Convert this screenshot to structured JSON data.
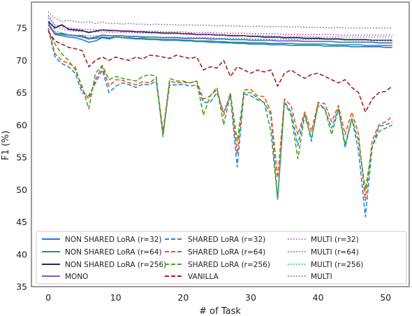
{
  "chart_data": {
    "type": "line",
    "xlabel": "# of Task",
    "ylabel": "F1 (%)",
    "xlim": [
      -2.5,
      53.5
    ],
    "ylim": [
      35,
      79
    ],
    "xticks": [
      0,
      10,
      20,
      30,
      40,
      50
    ],
    "yticks": [
      35,
      40,
      45,
      50,
      55,
      60,
      65,
      70,
      75
    ],
    "grid": false,
    "legend": {
      "placement": "bottom",
      "columns": 3
    },
    "x": [
      0,
      1,
      2,
      3,
      4,
      5,
      6,
      7,
      8,
      9,
      10,
      11,
      12,
      13,
      14,
      15,
      16,
      17,
      18,
      19,
      20,
      21,
      22,
      23,
      24,
      25,
      26,
      27,
      28,
      29,
      30,
      31,
      32,
      33,
      34,
      35,
      36,
      37,
      38,
      39,
      40,
      41,
      42,
      43,
      44,
      45,
      46,
      47,
      48,
      49,
      50,
      51
    ],
    "series": [
      {
        "name": "NON SHARED LoRA (r=32)",
        "color": "#1f77e6",
        "dash": "solid",
        "width": 1.6,
        "values": [
          75.8,
          74.0,
          73.8,
          73.6,
          73.5,
          73.2,
          72.8,
          73.0,
          73.5,
          73.3,
          73.6,
          73.5,
          73.4,
          73.3,
          73.3,
          73.2,
          73.2,
          73.1,
          73.1,
          73.1,
          73.0,
          73.0,
          72.9,
          72.9,
          72.8,
          72.8,
          72.7,
          72.7,
          72.6,
          72.6,
          72.5,
          72.5,
          72.5,
          72.4,
          72.4,
          72.4,
          72.3,
          72.3,
          72.3,
          72.3,
          72.3,
          72.2,
          72.2,
          72.2,
          72.2,
          72.1,
          72.1,
          72.1,
          72.1,
          72.1,
          72.0,
          72.0
        ]
      },
      {
        "name": "NON SHARED LoRA (r=64)",
        "color": "#159a7c",
        "dash": "solid",
        "width": 1.6,
        "values": [
          75.5,
          74.2,
          74.0,
          73.9,
          73.8,
          73.6,
          73.3,
          73.4,
          73.6,
          73.5,
          73.6,
          73.5,
          73.5,
          73.4,
          73.4,
          73.3,
          73.3,
          73.2,
          73.2,
          73.2,
          73.1,
          73.1,
          73.0,
          73.0,
          73.0,
          72.9,
          72.9,
          72.8,
          72.8,
          72.8,
          72.7,
          72.7,
          72.7,
          72.6,
          72.6,
          72.6,
          72.6,
          72.5,
          72.5,
          72.5,
          72.5,
          72.5,
          72.4,
          72.4,
          72.4,
          72.4,
          72.4,
          72.3,
          72.3,
          72.3,
          72.3,
          72.3
        ]
      },
      {
        "name": "NON SHARED LoRA (r=256)",
        "color": "#1b2a52",
        "dash": "solid",
        "width": 1.8,
        "values": [
          76.0,
          75.0,
          75.5,
          74.8,
          74.7,
          74.6,
          74.3,
          74.5,
          74.7,
          74.6,
          74.6,
          74.5,
          74.5,
          74.4,
          74.4,
          74.3,
          74.3,
          74.2,
          74.2,
          74.2,
          74.1,
          74.1,
          74.0,
          74.0,
          74.0,
          73.9,
          73.9,
          73.8,
          73.8,
          73.8,
          73.7,
          73.7,
          73.6,
          73.6,
          73.6,
          73.5,
          73.5,
          73.5,
          73.4,
          73.4,
          73.4,
          73.3,
          73.3,
          73.3,
          73.2,
          73.2,
          73.2,
          73.2,
          73.1,
          73.1,
          73.1,
          73.1
        ]
      },
      {
        "name": "MONO",
        "color": "#7b5cc8",
        "dash": "solid",
        "width": 1.8,
        "values": [
          75.5,
          74.0,
          74.2,
          73.9,
          73.8,
          73.8,
          73.4,
          73.6,
          73.9,
          73.8,
          73.8,
          73.8,
          73.7,
          73.7,
          73.6,
          73.6,
          73.6,
          73.5,
          73.5,
          73.5,
          73.4,
          73.4,
          73.4,
          73.4,
          73.3,
          73.3,
          73.3,
          73.2,
          73.2,
          73.2,
          73.1,
          73.1,
          73.1,
          73.1,
          73.0,
          73.0,
          73.0,
          73.0,
          72.9,
          72.9,
          72.9,
          72.9,
          72.9,
          72.8,
          72.8,
          72.8,
          72.8,
          72.8,
          72.8,
          72.7,
          72.7,
          72.7
        ]
      },
      {
        "name": "SHARED LoRA (r=32)",
        "color": "#1f86e6",
        "dash": "dashed",
        "width": 1.6,
        "values": [
          74.8,
          70.5,
          69.5,
          69.0,
          68.0,
          65.0,
          64.5,
          66.5,
          68.5,
          65.0,
          66.0,
          66.5,
          66.2,
          65.8,
          66.3,
          66.2,
          66.8,
          58.5,
          66.2,
          66.2,
          66.3,
          66.0,
          66.2,
          63.5,
          63.5,
          65.0,
          62.0,
          64.5,
          53.5,
          64.8,
          64.5,
          63.9,
          63.5,
          61.5,
          48.5,
          63.6,
          62.0,
          56.8,
          62.0,
          57.5,
          63.4,
          62.5,
          59.5,
          62.5,
          56.5,
          61.0,
          56.0,
          45.8,
          56.5,
          59.8,
          60.0,
          60.5
        ]
      },
      {
        "name": "SHARED LoRA (r=64)",
        "color": "#e8531e",
        "dash": "dashed",
        "width": 1.6,
        "values": [
          75.0,
          71.0,
          70.0,
          69.5,
          69.0,
          65.5,
          64.0,
          67.0,
          69.0,
          66.0,
          67.0,
          66.9,
          66.5,
          66.2,
          66.7,
          66.5,
          67.3,
          59.0,
          66.8,
          66.5,
          66.6,
          66.5,
          66.8,
          64.0,
          64.5,
          65.5,
          61.5,
          65.0,
          55.5,
          65.4,
          65.5,
          64.5,
          64.4,
          62.0,
          51.8,
          64.0,
          63.0,
          58.5,
          62.0,
          59.0,
          63.5,
          63.3,
          60.5,
          63.0,
          58.5,
          62.0,
          58.5,
          48.3,
          57.5,
          60.0,
          60.5,
          61.3
        ]
      },
      {
        "name": "SHARED LoRA (r=256)",
        "color": "#46a31c",
        "dash": "dashed",
        "width": 1.6,
        "values": [
          74.5,
          72.5,
          71.0,
          70.0,
          68.5,
          66.0,
          62.5,
          68.0,
          69.2,
          67.0,
          67.5,
          67.2,
          67.0,
          66.8,
          67.5,
          67.8,
          67.5,
          58.2,
          67.2,
          66.8,
          66.8,
          66.5,
          66.8,
          61.5,
          64.5,
          65.8,
          60.0,
          64.8,
          57.5,
          65.0,
          65.0,
          64.2,
          63.5,
          59.0,
          48.5,
          63.5,
          61.5,
          54.8,
          61.5,
          58.0,
          63.0,
          62.5,
          58.5,
          62.5,
          57.0,
          61.0,
          57.5,
          50.0,
          56.5,
          59.0,
          59.5,
          60.0
        ]
      },
      {
        "name": "VANILLA",
        "color": "#a51e1e",
        "dash": "dashed",
        "width": 1.6,
        "values": [
          74.5,
          73.0,
          72.5,
          72.0,
          71.8,
          71.5,
          69.0,
          70.0,
          70.5,
          70.0,
          70.5,
          70.2,
          70.0,
          70.5,
          70.2,
          70.8,
          70.7,
          70.5,
          70.3,
          70.8,
          70.5,
          70.3,
          70.5,
          68.5,
          69.0,
          68.8,
          70.0,
          67.5,
          69.0,
          68.5,
          68.0,
          68.5,
          68.2,
          68.5,
          66.0,
          68.0,
          68.5,
          67.8,
          67.2,
          67.8,
          68.0,
          67.5,
          67.0,
          66.5,
          67.0,
          65.8,
          65.0,
          62.0,
          64.0,
          65.0,
          65.2,
          66.0
        ]
      },
      {
        "name": "MULTI (r=32)",
        "color": "#a455d8",
        "dash": "dotted",
        "width": 1.5,
        "values": [
          76.8,
          75.2,
          74.8,
          74.6,
          74.5,
          74.4,
          74.5,
          74.4,
          74.4,
          74.3,
          74.3,
          74.3,
          74.3,
          74.2,
          74.2,
          74.2,
          74.2,
          74.1,
          74.1,
          74.1,
          74.1,
          74.0,
          74.0,
          74.0,
          74.0,
          73.9,
          73.9,
          73.9,
          73.9,
          73.8,
          73.8,
          73.8,
          73.8,
          73.8,
          73.7,
          73.7,
          73.7,
          73.7,
          73.7,
          73.7,
          73.6,
          73.6,
          73.6,
          73.6,
          73.6,
          73.6,
          73.6,
          73.6,
          73.6,
          73.6,
          73.6,
          73.6
        ]
      },
      {
        "name": "MULTI (r=64)",
        "color": "#d63a8e",
        "dash": "dotted",
        "width": 1.5,
        "values": [
          77.0,
          75.5,
          75.2,
          75.0,
          74.9,
          74.8,
          74.8,
          74.7,
          74.7,
          74.7,
          74.6,
          74.6,
          74.6,
          74.5,
          74.5,
          74.5,
          74.5,
          74.4,
          74.4,
          74.4,
          74.4,
          74.3,
          74.3,
          74.3,
          74.3,
          74.2,
          74.2,
          74.2,
          74.2,
          74.2,
          74.1,
          74.1,
          74.1,
          74.1,
          74.1,
          74.0,
          74.0,
          74.0,
          74.0,
          74.0,
          74.0,
          74.0,
          74.0,
          73.9,
          73.9,
          73.9,
          73.9,
          73.9,
          73.9,
          73.9,
          73.9,
          73.9
        ]
      },
      {
        "name": "MULTI (r=256)",
        "color": "#24a887",
        "dash": "dotted",
        "width": 1.5,
        "values": [
          76.5,
          74.5,
          74.2,
          74.0,
          73.9,
          73.9,
          73.8,
          73.8,
          73.8,
          73.8,
          73.7,
          73.7,
          73.7,
          73.7,
          73.7,
          73.6,
          73.6,
          73.6,
          73.6,
          73.6,
          73.5,
          73.5,
          73.5,
          73.5,
          73.5,
          73.4,
          73.4,
          73.4,
          73.4,
          73.4,
          73.3,
          73.3,
          73.3,
          73.3,
          73.3,
          73.3,
          73.2,
          73.2,
          73.2,
          73.2,
          73.2,
          73.2,
          73.2,
          73.2,
          73.1,
          73.1,
          73.1,
          73.1,
          73.1,
          73.1,
          73.1,
          73.1
        ]
      },
      {
        "name": "MULTI",
        "color": "#6b6b8a",
        "dash": "dotted",
        "width": 1.5,
        "values": [
          77.5,
          76.5,
          76.0,
          76.2,
          76.0,
          75.8,
          76.0,
          75.7,
          75.9,
          75.7,
          75.7,
          75.6,
          75.7,
          75.6,
          75.6,
          75.5,
          75.6,
          75.5,
          75.5,
          75.5,
          75.4,
          75.5,
          75.4,
          75.4,
          75.4,
          75.3,
          75.4,
          75.3,
          75.3,
          75.3,
          75.2,
          75.3,
          75.2,
          75.2,
          75.2,
          75.2,
          75.1,
          75.2,
          75.1,
          75.1,
          75.1,
          75.1,
          75.0,
          75.1,
          75.0,
          75.0,
          75.0,
          75.0,
          75.0,
          75.0,
          75.0,
          75.0
        ]
      }
    ]
  }
}
